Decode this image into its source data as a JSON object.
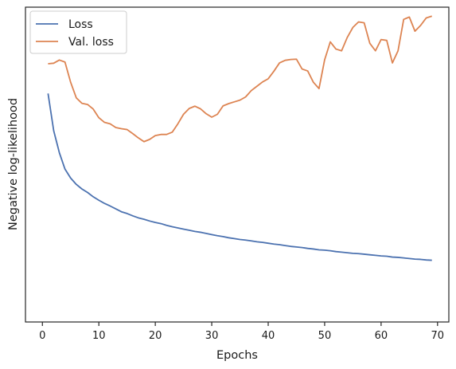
{
  "chart_data": {
    "type": "line",
    "title": "",
    "xlabel": "Epochs",
    "ylabel": "Negative log-likelihood",
    "xlim": [
      -3,
      72
    ],
    "ylim": [
      0,
      1
    ],
    "x_ticks": [
      0,
      10,
      20,
      30,
      40,
      50,
      60,
      70
    ],
    "y_ticks": [],
    "y_tick_labels_shown": false,
    "grid": false,
    "legend_position": "top-left",
    "series": [
      {
        "name": "Loss",
        "color": "#4c72b0",
        "x": [
          1,
          2,
          3,
          4,
          5,
          6,
          7,
          8,
          9,
          10,
          11,
          12,
          13,
          14,
          15,
          16,
          17,
          18,
          19,
          20,
          21,
          22,
          23,
          24,
          25,
          26,
          27,
          28,
          29,
          30,
          31,
          32,
          33,
          34,
          35,
          36,
          37,
          38,
          39,
          40,
          41,
          42,
          43,
          44,
          45,
          46,
          47,
          48,
          49,
          50,
          51,
          52,
          53,
          54,
          55,
          56,
          57,
          58,
          59,
          60,
          61,
          62,
          63,
          64,
          65,
          66,
          67,
          68,
          69
        ],
        "values": [
          0.745,
          0.616,
          0.54,
          0.483,
          0.452,
          0.43,
          0.414,
          0.402,
          0.387,
          0.375,
          0.364,
          0.355,
          0.345,
          0.335,
          0.329,
          0.321,
          0.314,
          0.309,
          0.303,
          0.298,
          0.294,
          0.288,
          0.283,
          0.279,
          0.275,
          0.271,
          0.267,
          0.264,
          0.26,
          0.256,
          0.252,
          0.249,
          0.245,
          0.242,
          0.239,
          0.237,
          0.234,
          0.231,
          0.229,
          0.226,
          0.223,
          0.221,
          0.218,
          0.215,
          0.213,
          0.211,
          0.208,
          0.206,
          0.203,
          0.202,
          0.2,
          0.197,
          0.195,
          0.193,
          0.191,
          0.19,
          0.188,
          0.186,
          0.184,
          0.182,
          0.181,
          0.178,
          0.177,
          0.175,
          0.173,
          0.171,
          0.17,
          0.168,
          0.167
        ]
      },
      {
        "name": "Val. loss",
        "color": "#dd8452",
        "x": [
          1,
          2,
          3,
          4,
          5,
          6,
          7,
          8,
          9,
          10,
          11,
          12,
          13,
          14,
          15,
          16,
          17,
          18,
          19,
          20,
          21,
          22,
          23,
          24,
          25,
          26,
          27,
          28,
          29,
          30,
          31,
          32,
          33,
          34,
          35,
          36,
          37,
          38,
          39,
          40,
          41,
          42,
          43,
          44,
          45,
          46,
          47,
          48,
          49,
          50,
          51,
          52,
          53,
          54,
          55,
          56,
          57,
          58,
          59,
          60,
          61,
          62,
          63,
          64,
          65,
          66,
          67,
          68,
          69
        ],
        "values": [
          0.848,
          0.85,
          0.861,
          0.854,
          0.784,
          0.73,
          0.711,
          0.707,
          0.691,
          0.661,
          0.645,
          0.64,
          0.627,
          0.623,
          0.62,
          0.606,
          0.591,
          0.578,
          0.586,
          0.599,
          0.603,
          0.603,
          0.611,
          0.64,
          0.673,
          0.693,
          0.701,
          0.692,
          0.675,
          0.663,
          0.673,
          0.702,
          0.71,
          0.716,
          0.722,
          0.733,
          0.755,
          0.77,
          0.785,
          0.796,
          0.822,
          0.851,
          0.86,
          0.863,
          0.864,
          0.83,
          0.823,
          0.784,
          0.762,
          0.862,
          0.924,
          0.899,
          0.893,
          0.939,
          0.974,
          0.993,
          0.99,
          0.919,
          0.893,
          0.932,
          0.929,
          0.851,
          0.893,
          1.002,
          1.01,
          0.961,
          0.981,
          1.007,
          1.013
        ]
      }
    ]
  }
}
